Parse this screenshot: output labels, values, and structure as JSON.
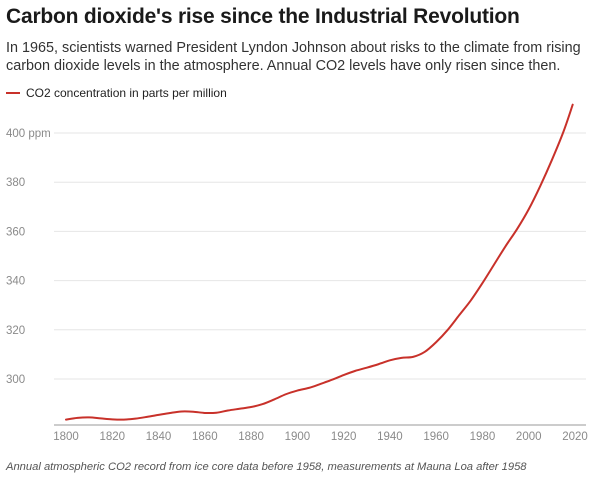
{
  "title": "Carbon dioxide's rise since the Industrial Revolution",
  "subtitle": "In 1965, scientists warned President Lyndon Johnson about risks to the climate from rising carbon dioxide levels in the atmosphere. Annual CO2 levels have only risen since then.",
  "caption": "Annual atmospheric CO2 record from ice core data before 1958, measurements at Mauna Loa after 1958",
  "chart_data": {
    "type": "line",
    "title": "Carbon dioxide's rise since the Industrial Revolution",
    "xlabel": "",
    "ylabel": "",
    "xlim": [
      1800,
      2020
    ],
    "ylim": [
      284,
      406
    ],
    "x_ticks": [
      1800,
      1820,
      1840,
      1860,
      1880,
      1900,
      1920,
      1940,
      1960,
      1980,
      2000,
      2020
    ],
    "x_tick_labels": [
      "1800",
      "1820",
      "1840",
      "1860",
      "1880",
      "1900",
      "1920",
      "1940",
      "1960",
      "1980",
      "2000",
      "2020"
    ],
    "y_ticks": [
      300,
      320,
      340,
      360,
      380,
      400
    ],
    "y_tick_labels": [
      "300",
      "320",
      "340",
      "360",
      "380",
      "400 ppm"
    ],
    "grid": "horizontal",
    "legend_position": "top-left",
    "series": [
      {
        "name": "CO2 concentration in parts per million",
        "color": "#c8312a",
        "x": [
          1800,
          1805,
          1810,
          1815,
          1820,
          1825,
          1830,
          1835,
          1840,
          1845,
          1850,
          1855,
          1860,
          1865,
          1870,
          1875,
          1880,
          1885,
          1890,
          1895,
          1900,
          1905,
          1910,
          1915,
          1920,
          1925,
          1930,
          1935,
          1940,
          1945,
          1950,
          1955,
          1960,
          1965,
          1970,
          1975,
          1980,
          1985,
          1990,
          1995,
          2000,
          2005,
          2010,
          2015,
          2019
        ],
        "values": [
          283.5,
          284.2,
          284.4,
          284.0,
          283.6,
          283.5,
          283.9,
          284.6,
          285.4,
          286.2,
          286.8,
          286.7,
          286.2,
          286.3,
          287.2,
          287.9,
          288.6,
          289.8,
          291.7,
          293.8,
          295.3,
          296.4,
          298.0,
          299.7,
          301.6,
          303.3,
          304.6,
          306.0,
          307.6,
          308.6,
          309.0,
          311.0,
          315.0,
          320.0,
          326.0,
          332.0,
          339.0,
          346.5,
          354.0,
          361.0,
          369.0,
          378.5,
          389.0,
          400.5,
          411.5
        ]
      }
    ]
  }
}
